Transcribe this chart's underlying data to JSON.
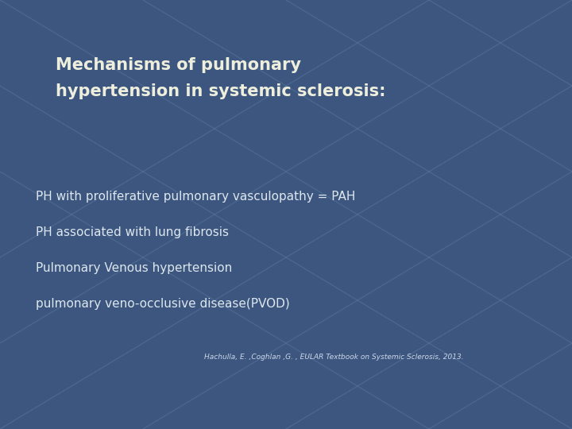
{
  "bg_color": "#3d5680",
  "title_line1": "Mechanisms of pulmonary",
  "title_line2": "hypertension in systemic sclerosis:",
  "title_color": "#eeeedd",
  "title_fontsize": 15,
  "bullet_items": [
    "PH with proliferative pulmonary vasculopathy = PAH",
    "PH associated with lung fibrosis",
    "Pulmonary Venous hypertension",
    "pulmonary veno-occlusive disease(PVOD)"
  ],
  "bullet_color": "#dde8ee",
  "bullet_fontsize": 11,
  "citation": "Hachulla, E. ,Coghlan ,G. , EULAR Textbook on Systemic Sclerosis, 2013.",
  "citation_color": "#ccd8e8",
  "citation_fontsize": 6.5,
  "diagonal_color": "#6a8ab0",
  "diagonal_alpha": 0.3
}
